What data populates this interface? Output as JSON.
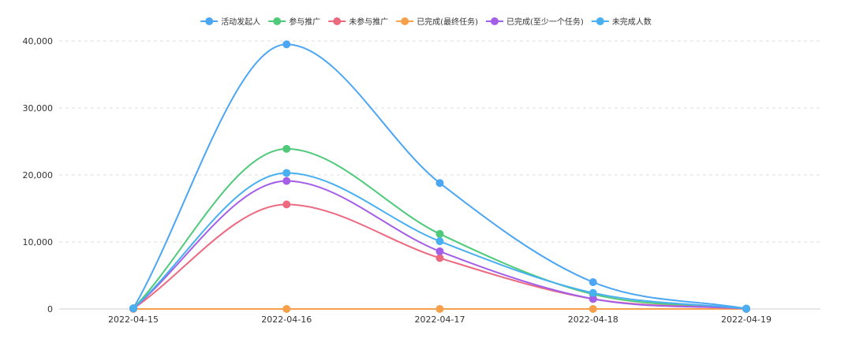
{
  "chart_data": {
    "type": "line",
    "smooth": true,
    "title": "",
    "xlabel": "",
    "ylabel": "",
    "categories": [
      "2022-04-15",
      "2022-04-16",
      "2022-04-17",
      "2022-04-18",
      "2022-04-19"
    ],
    "ylim": [
      0,
      40000
    ],
    "yticks": [
      0,
      10000,
      20000,
      30000,
      40000
    ],
    "ytick_labels": [
      "0",
      "10,000",
      "20,000",
      "30,000",
      "40,000"
    ],
    "grid": true,
    "legend_position": "top-center",
    "series": [
      {
        "name": "活动发起人",
        "color": "#4da6f3",
        "values": [
          100,
          39500,
          18800,
          4000,
          50
        ]
      },
      {
        "name": "参与推广",
        "color": "#4fc97a",
        "values": [
          80,
          23900,
          11200,
          2200,
          40
        ]
      },
      {
        "name": "未参与推广",
        "color": "#ec6a80",
        "values": [
          60,
          15600,
          7600,
          1500,
          30
        ]
      },
      {
        "name": "已完成(最终任务)",
        "color": "#f6a04c",
        "values": [
          0,
          0,
          0,
          0,
          0
        ]
      },
      {
        "name": "已完成(至少一个任务)",
        "color": "#a45fe8",
        "values": [
          70,
          19100,
          8600,
          1500,
          30
        ]
      },
      {
        "name": "未完成人数",
        "color": "#48b0f0",
        "values": [
          90,
          20300,
          10100,
          2400,
          40
        ]
      }
    ]
  }
}
